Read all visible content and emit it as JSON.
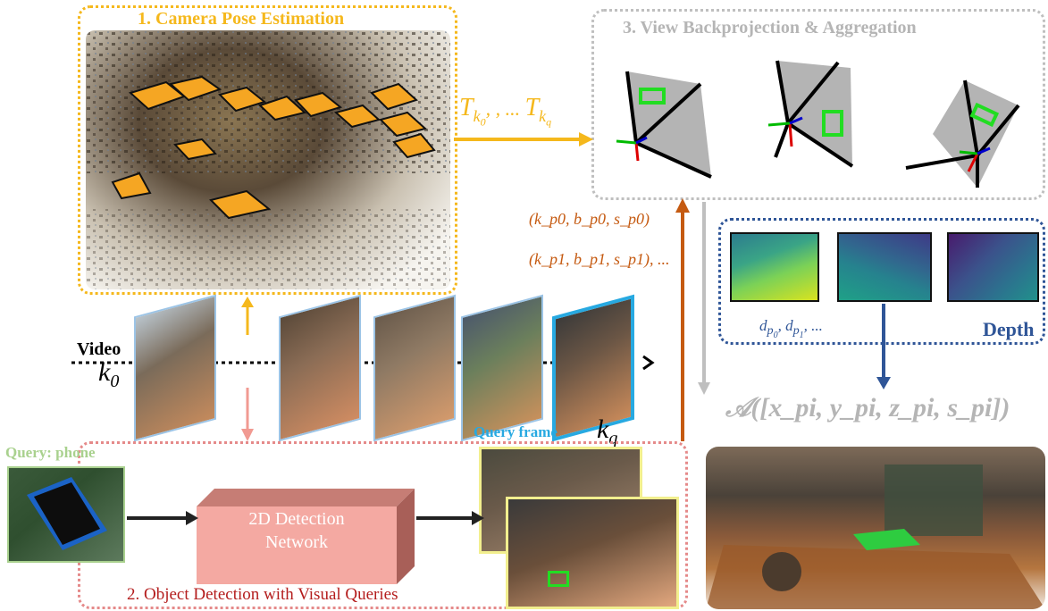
{
  "stage1": {
    "title": "1. Camera Pose Estimation",
    "color": "#f5b81c"
  },
  "stage2": {
    "title": "2. Object Detection with Visual Queries",
    "color": "#b41d1d",
    "network_label_line1": "2D Detection",
    "network_label_line2": "Network"
  },
  "stage3": {
    "title": "3. View Backprojection & Aggregation",
    "color": "#b5b5b5"
  },
  "video": {
    "label": "Video",
    "k0_base": "k",
    "k0_sub": "0",
    "kq_base": "k",
    "kq_sub": "q",
    "query_frame_label": "Query frame"
  },
  "query": {
    "label": "Query: phone",
    "color": "#a9d18e"
  },
  "poses_label": {
    "base": "T",
    "sub1": "k",
    "sub1_sub": "0",
    "middle": ", , ... ",
    "sub2": "k",
    "sub2_sub": "q"
  },
  "detections": {
    "line1": "(k_p0, b_p0, s_p0)",
    "line2": "(k_p1, b_p1, s_p1), ...",
    "color": "#c55a11"
  },
  "depth": {
    "title": "Depth",
    "label": "d_p0, d_p1, ...",
    "color": "#2f5597"
  },
  "aggregation_label": "𝒜([x_pi, y_pi, z_pi, s_pi])"
}
